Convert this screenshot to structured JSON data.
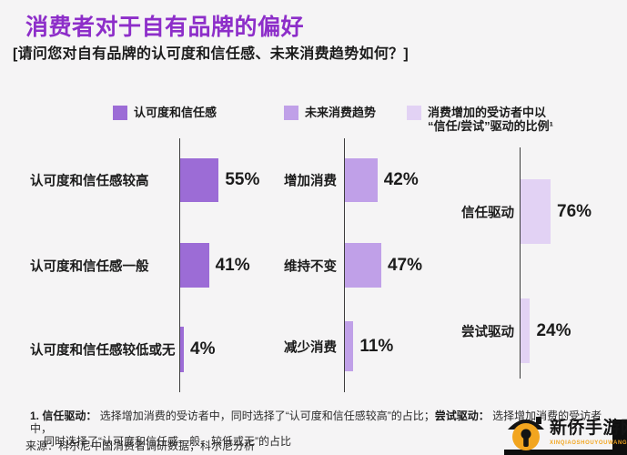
{
  "title": "消费者对于自有品牌的偏好",
  "subtitle": "[请问您对自有品牌的认可度和信任感、未来消费趋势如何？]",
  "colors": {
    "title": "#8D2EC9",
    "series1": "#9C6CD6",
    "series2": "#C0A0E8",
    "series3": "#E2D2F4",
    "axis": "#3C3C3C",
    "watermark_orange": "#F2A51F"
  },
  "chart_data": [
    {
      "type": "bar",
      "orientation": "horizontal",
      "legend_label": "认可度和信任感",
      "categories": [
        "认可度和信任感较高",
        "认可度和信任感一般",
        "认可度和信任感较低或无"
      ],
      "values": [
        55,
        41,
        4
      ],
      "value_labels": [
        "55%",
        "41%",
        "4%"
      ],
      "unit": "%",
      "color": "#9C6CD6"
    },
    {
      "type": "bar",
      "orientation": "horizontal",
      "legend_label": "未来消费趋势",
      "categories": [
        "增加消费",
        "维持不变",
        "减少消费"
      ],
      "values": [
        42,
        47,
        11
      ],
      "value_labels": [
        "42%",
        "47%",
        "11%"
      ],
      "unit": "%",
      "color": "#C0A0E8"
    },
    {
      "type": "bar",
      "orientation": "horizontal",
      "legend_label_line1": "消费增加的受访者中以",
      "legend_label_line2": "“信任/尝试”驱动的比例¹",
      "categories": [
        "信任驱动",
        "尝试驱动"
      ],
      "values": [
        76,
        24
      ],
      "value_labels": [
        "76%",
        "24%"
      ],
      "unit": "%",
      "color": "#E2D2F4"
    }
  ],
  "footnote": {
    "number": "1.",
    "term1": "信任驱动：",
    "text1": "选择增加消费的受访者中，同时选择了“认可度和信任感较高”的占比；",
    "term2": "尝试驱动：",
    "text2": "选择增加消费的受访者中，",
    "line2": "同时选择了“认可度和信任感一般、较低或无”的占比",
    "source": "来源：科尔尼中国消费者调研数据；科尔尼分析"
  },
  "watermark": {
    "name": "新侨手游网",
    "subtext": "XINQIAOSHOUYOUWANG"
  }
}
